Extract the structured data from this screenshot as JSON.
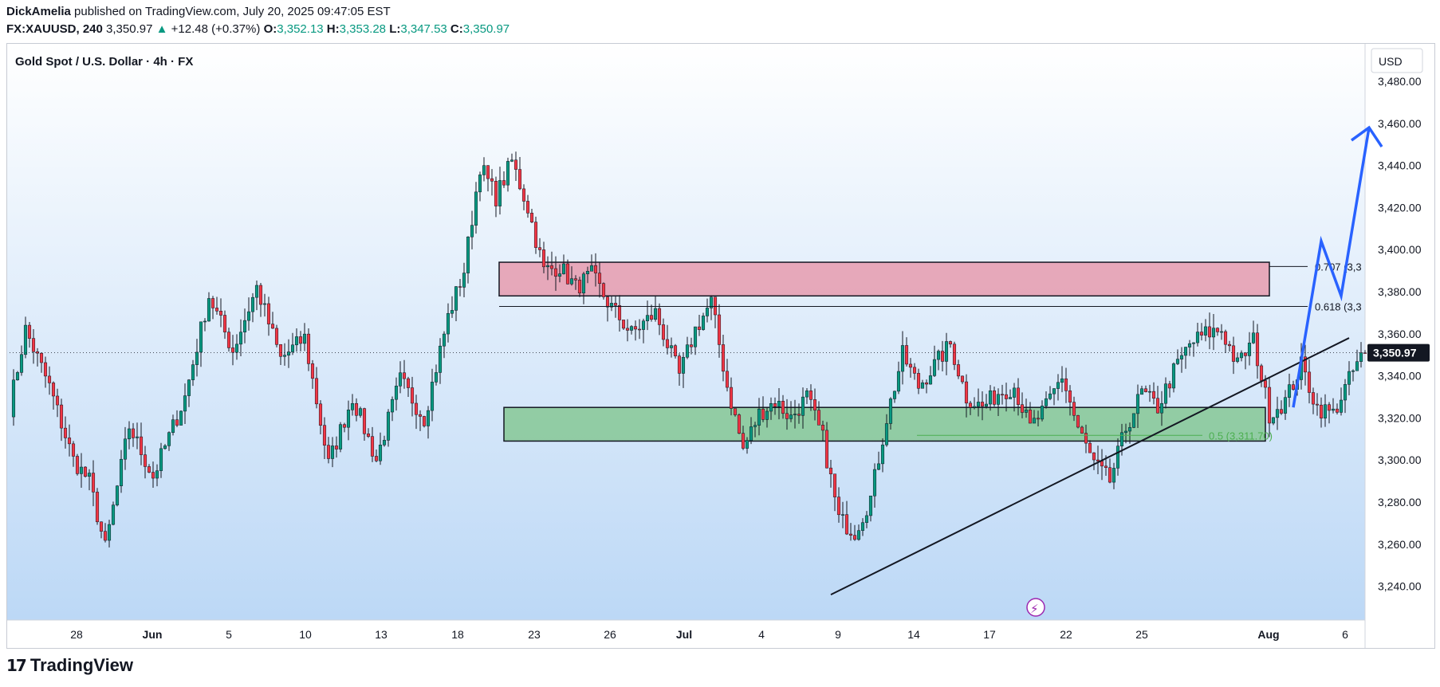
{
  "header": {
    "author": "DickAmelia",
    "published_text": "published on TradingView.com, July 20, 2025 09:47:05 EST",
    "symbol": "FX:XAUUSD, 240",
    "last": "3,350.97",
    "change_arrow": "▲",
    "change": "+12.48 (+0.37%)",
    "o_label": "O:",
    "o_val": "3,352.13",
    "h_label": "H:",
    "h_val": "3,353.28",
    "l_label": "L:",
    "l_val": "3,347.53",
    "c_label": "C:",
    "c_val": "3,350.97"
  },
  "chart_data": {
    "type": "candlestick",
    "title": "Gold Spot / U.S. Dollar · 4h · FX",
    "currency": "USD",
    "ylim": [
      3228,
      3490
    ],
    "y_ticks": [
      "3,480.00",
      "3,460.00",
      "3,440.00",
      "3,420.00",
      "3,400.00",
      "3,380.00",
      "3,360.00",
      "3,340.00",
      "3,320.00",
      "3,300.00",
      "3,280.00",
      "3,260.00",
      "3,240.00"
    ],
    "y_tick_values": [
      3480,
      3460,
      3440,
      3420,
      3400,
      3380,
      3360,
      3340,
      3320,
      3300,
      3280,
      3260,
      3240
    ],
    "x_labels": [
      "28",
      "Jun",
      "5",
      "10",
      "13",
      "18",
      "23",
      "26",
      "Jul",
      "4",
      "9",
      "14",
      "17",
      "22",
      "25",
      "Aug",
      "6"
    ],
    "x_label_bold": [
      false,
      true,
      false,
      false,
      false,
      false,
      false,
      false,
      true,
      false,
      false,
      false,
      false,
      false,
      false,
      true,
      false
    ],
    "current_price": "3,350.97",
    "current_value": 3350.97,
    "swing_points": [
      [
        0,
        3325
      ],
      [
        4,
        3362
      ],
      [
        10,
        3335
      ],
      [
        16,
        3300
      ],
      [
        20,
        3290
      ],
      [
        24,
        3258
      ],
      [
        30,
        3316
      ],
      [
        36,
        3292
      ],
      [
        44,
        3330
      ],
      [
        50,
        3378
      ],
      [
        56,
        3352
      ],
      [
        62,
        3382
      ],
      [
        68,
        3348
      ],
      [
        74,
        3358
      ],
      [
        80,
        3298
      ],
      [
        86,
        3330
      ],
      [
        92,
        3300
      ],
      [
        98,
        3338
      ],
      [
        104,
        3320
      ],
      [
        110,
        3368
      ],
      [
        114,
        3390
      ],
      [
        118,
        3440
      ],
      [
        122,
        3425
      ],
      [
        126,
        3442
      ],
      [
        130,
        3420
      ],
      [
        134,
        3390
      ],
      [
        138,
        3392
      ],
      [
        142,
        3382
      ],
      [
        146,
        3388
      ],
      [
        150,
        3375
      ],
      [
        156,
        3360
      ],
      [
        162,
        3370
      ],
      [
        168,
        3340
      ],
      [
        172,
        3362
      ],
      [
        176,
        3375
      ],
      [
        180,
        3335
      ],
      [
        184,
        3305
      ],
      [
        188,
        3322
      ],
      [
        192,
        3328
      ],
      [
        196,
        3320
      ],
      [
        200,
        3330
      ],
      [
        204,
        3310
      ],
      [
        208,
        3272
      ],
      [
        212,
        3266
      ],
      [
        216,
        3282
      ],
      [
        220,
        3320
      ],
      [
        224,
        3350
      ],
      [
        228,
        3335
      ],
      [
        232,
        3345
      ],
      [
        236,
        3355
      ],
      [
        240,
        3330
      ],
      [
        244,
        3325
      ],
      [
        248,
        3332
      ],
      [
        252,
        3335
      ],
      [
        256,
        3315
      ],
      [
        260,
        3325
      ],
      [
        264,
        3340
      ],
      [
        268,
        3315
      ],
      [
        272,
        3298
      ],
      [
        276,
        3290
      ],
      [
        280,
        3315
      ],
      [
        284,
        3332
      ],
      [
        288,
        3325
      ],
      [
        292,
        3342
      ],
      [
        296,
        3355
      ],
      [
        300,
        3360
      ],
      [
        304,
        3362
      ],
      [
        308,
        3345
      ],
      [
        312,
        3357
      ],
      [
        316,
        3322
      ],
      [
        320,
        3328
      ],
      [
        324,
        3345
      ],
      [
        328,
        3325
      ],
      [
        332,
        3322
      ],
      [
        336,
        3338
      ],
      [
        338,
        3346
      ],
      [
        340,
        3350.97
      ]
    ],
    "bars": 340,
    "annotations": {
      "resistance_zone": [
        3378,
        3394
      ],
      "support_zone": [
        3309,
        3325
      ],
      "fib_levels": [
        {
          "label": "0.707 (3,3",
          "value": 3392
        },
        {
          "label": "0.618 (3,3",
          "value": 3373
        },
        {
          "label": "0.5 (3,311.70)",
          "value": 3311.7
        }
      ],
      "trendline": {
        "from": [
          206,
          3236
        ],
        "to": [
          336,
          3358
        ]
      },
      "projection_path": [
        [
          322,
          3325
        ],
        [
          329,
          3404
        ],
        [
          334,
          3378
        ],
        [
          341,
          3458
        ]
      ]
    },
    "colors": {
      "up": "#089981",
      "down": "#f23645",
      "resistance": "#e8788f",
      "support": "#66bb6a",
      "projection": "#2962ff",
      "bg_top": "#ffffff",
      "bg_bottom": "#bcd8f6"
    }
  },
  "footer": {
    "brand": "TradingView",
    "mark": "17"
  }
}
